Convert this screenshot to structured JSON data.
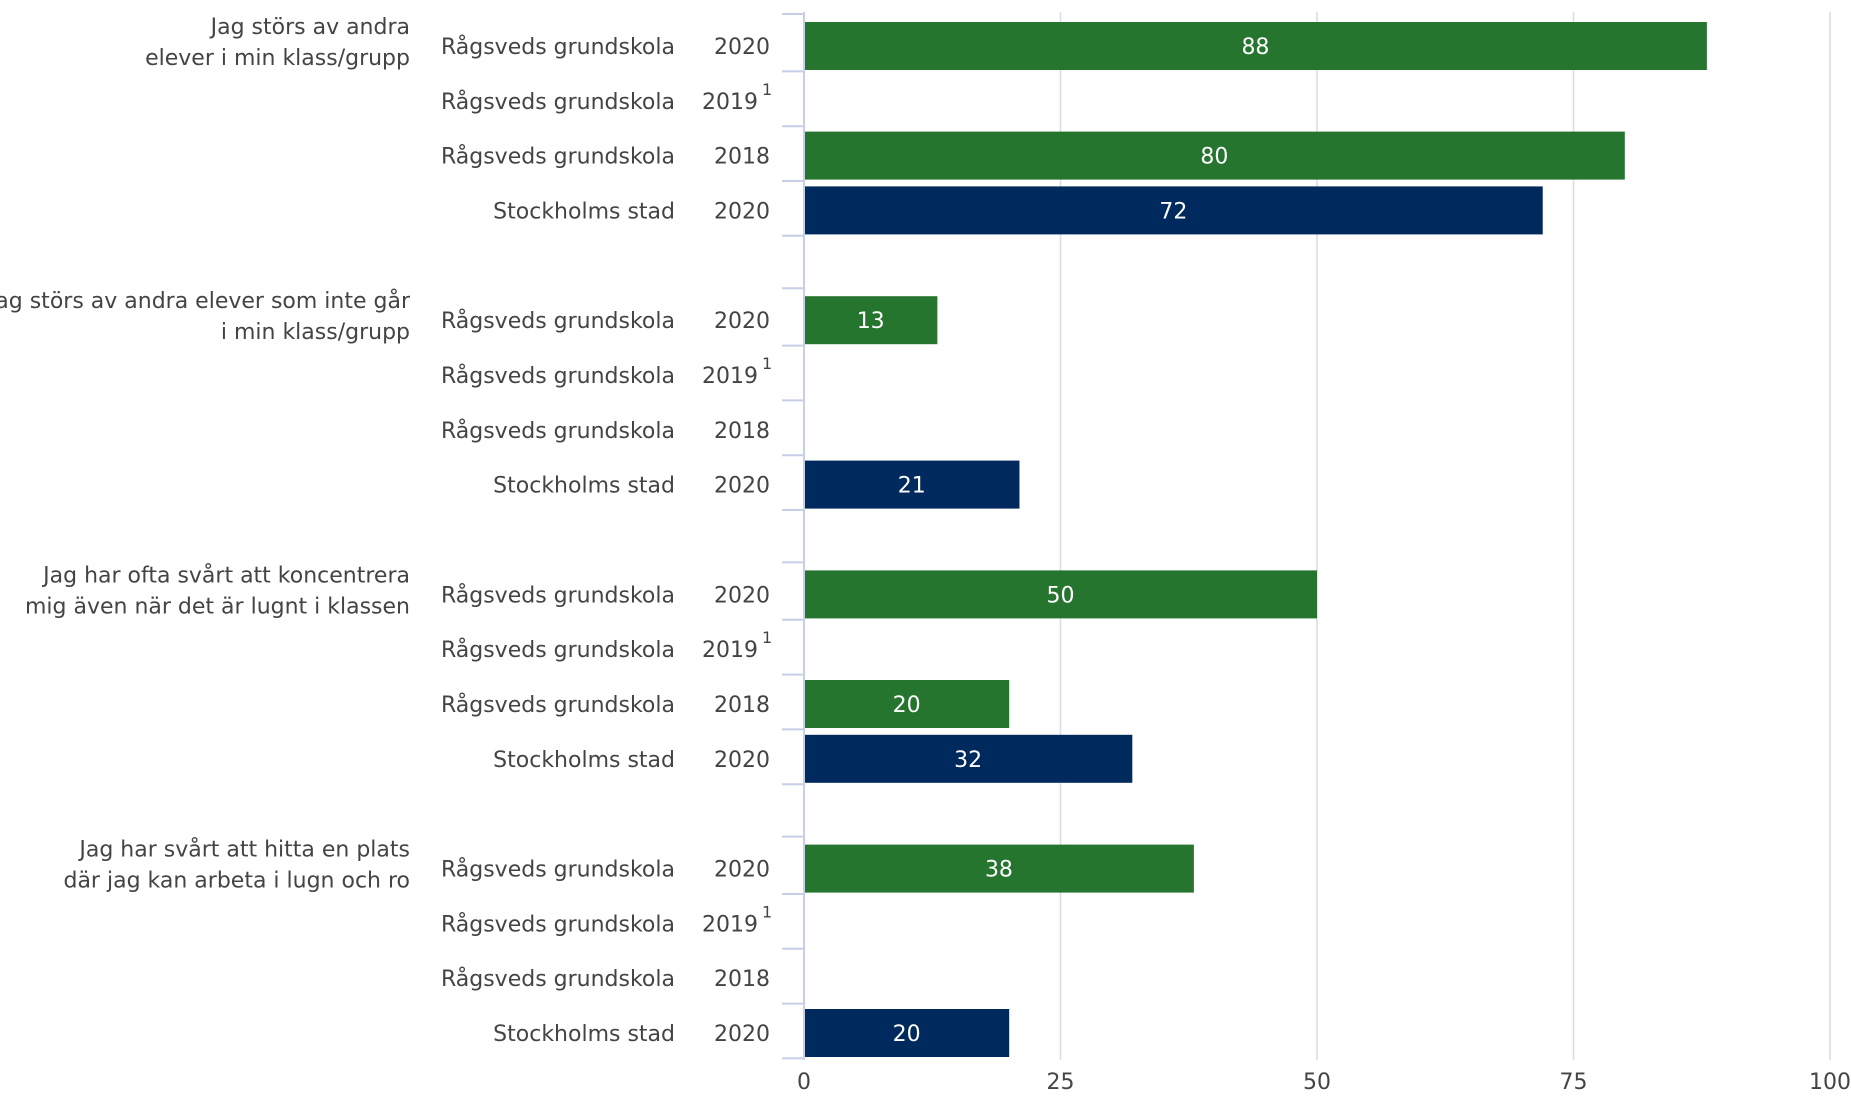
{
  "colors": {
    "school": "#26752f",
    "city": "#002a5e"
  },
  "chart_data": {
    "type": "bar",
    "orientation": "horizontal",
    "xlim": [
      0,
      100
    ],
    "xticks": [
      "0",
      "25",
      "50",
      "75",
      "100"
    ],
    "grid": true,
    "groups": [
      {
        "question": [
          "Jag störs av andra",
          "elever i min klass/grupp"
        ],
        "rows": [
          {
            "unit": "Rågsveds grundskola",
            "year": "2020",
            "sup": "",
            "value": 88,
            "kind": "school"
          },
          {
            "unit": "Rågsveds grundskola",
            "year": "2019",
            "sup": "1",
            "value": null,
            "kind": "school"
          },
          {
            "unit": "Rågsveds grundskola",
            "year": "2018",
            "sup": "",
            "value": 80,
            "kind": "school"
          },
          {
            "unit": "Stockholms stad",
            "year": "2020",
            "sup": "",
            "value": 72,
            "kind": "city"
          }
        ]
      },
      {
        "question": [
          "Jag störs av andra elever som inte går",
          "i min klass/grupp"
        ],
        "rows": [
          {
            "unit": "Rågsveds grundskola",
            "year": "2020",
            "sup": "",
            "value": 13,
            "kind": "school"
          },
          {
            "unit": "Rågsveds grundskola",
            "year": "2019",
            "sup": "1",
            "value": null,
            "kind": "school"
          },
          {
            "unit": "Rågsveds grundskola",
            "year": "2018",
            "sup": "",
            "value": null,
            "kind": "school"
          },
          {
            "unit": "Stockholms stad",
            "year": "2020",
            "sup": "",
            "value": 21,
            "kind": "city"
          }
        ]
      },
      {
        "question": [
          "Jag har ofta svårt att koncentrera",
          "mig även när det är lugnt i klassen"
        ],
        "rows": [
          {
            "unit": "Rågsveds grundskola",
            "year": "2020",
            "sup": "",
            "value": 50,
            "kind": "school"
          },
          {
            "unit": "Rågsveds grundskola",
            "year": "2019",
            "sup": "1",
            "value": null,
            "kind": "school"
          },
          {
            "unit": "Rågsveds grundskola",
            "year": "2018",
            "sup": "",
            "value": 20,
            "kind": "school"
          },
          {
            "unit": "Stockholms stad",
            "year": "2020",
            "sup": "",
            "value": 32,
            "kind": "city"
          }
        ]
      },
      {
        "question": [
          "Jag har svårt att hitta en plats",
          "där jag kan arbeta i lugn och ro"
        ],
        "rows": [
          {
            "unit": "Rågsveds grundskola",
            "year": "2020",
            "sup": "",
            "value": 38,
            "kind": "school"
          },
          {
            "unit": "Rågsveds grundskola",
            "year": "2019",
            "sup": "1",
            "value": null,
            "kind": "school"
          },
          {
            "unit": "Rågsveds grundskola",
            "year": "2018",
            "sup": "",
            "value": null,
            "kind": "school"
          },
          {
            "unit": "Stockholms stad",
            "year": "2020",
            "sup": "",
            "value": 20,
            "kind": "city"
          }
        ]
      }
    ]
  }
}
